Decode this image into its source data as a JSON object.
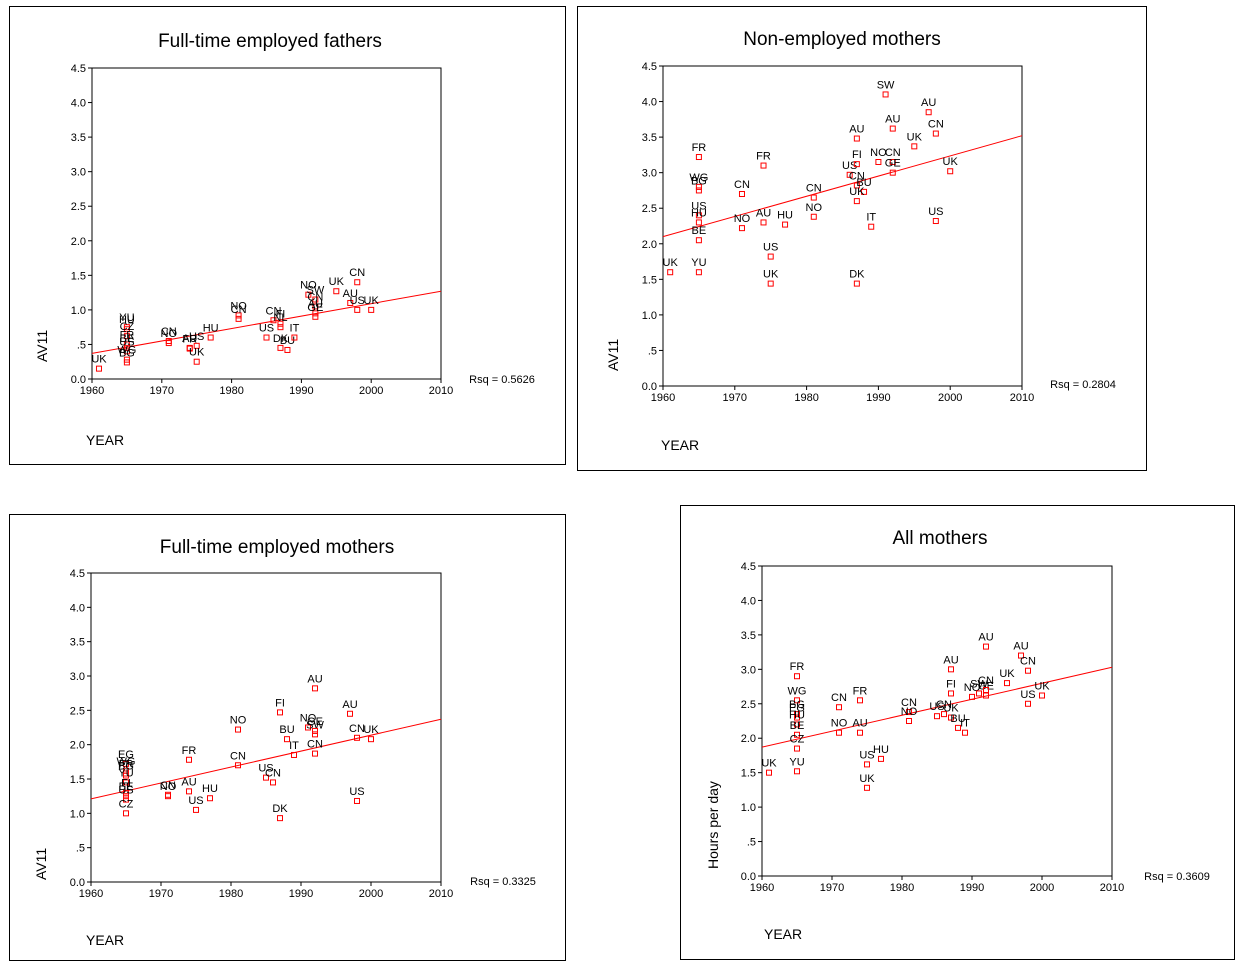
{
  "chart_data": [
    {
      "type": "scatter",
      "title": "Full-time employed fathers",
      "xlabel": "YEAR",
      "ylabel": "AV11",
      "xlim": [
        1960,
        2010
      ],
      "ylim": [
        0,
        4.5
      ],
      "x_ticks": [
        "1960",
        "1970",
        "1980",
        "1990",
        "2000",
        "2010"
      ],
      "y_ticks": [
        "0.0",
        ".5",
        "1.0",
        "1.5",
        "2.0",
        "2.5",
        "3.0",
        "3.5",
        "4.0",
        "4.5"
      ],
      "rsq_label": "Rsq = 0.5626",
      "fit_line": [
        [
          1960,
          0.37
        ],
        [
          2010,
          1.27
        ]
      ],
      "points": [
        {
          "label": "UK",
          "x": 1961,
          "y": 0.15
        },
        {
          "label": "YU",
          "x": 1965,
          "y": 0.75
        },
        {
          "label": "HU",
          "x": 1965,
          "y": 0.72
        },
        {
          "label": "CZ",
          "x": 1965,
          "y": 0.62
        },
        {
          "label": "FR",
          "x": 1965,
          "y": 0.5
        },
        {
          "label": "BE",
          "x": 1965,
          "y": 0.45
        },
        {
          "label": "US",
          "x": 1965,
          "y": 0.4
        },
        {
          "label": "WG",
          "x": 1965,
          "y": 0.28
        },
        {
          "label": "BG",
          "x": 1965,
          "y": 0.24
        },
        {
          "label": "NO",
          "x": 1971,
          "y": 0.52
        },
        {
          "label": "CN",
          "x": 1971,
          "y": 0.55
        },
        {
          "label": "FR",
          "x": 1974,
          "y": 0.44
        },
        {
          "label": "AU",
          "x": 1974,
          "y": 0.45
        },
        {
          "label": "US",
          "x": 1975,
          "y": 0.48
        },
        {
          "label": "UK",
          "x": 1975,
          "y": 0.25
        },
        {
          "label": "HU",
          "x": 1977,
          "y": 0.6
        },
        {
          "label": "NO",
          "x": 1981,
          "y": 0.92
        },
        {
          "label": "CN",
          "x": 1981,
          "y": 0.87
        },
        {
          "label": "US",
          "x": 1985,
          "y": 0.6
        },
        {
          "label": "CN",
          "x": 1986,
          "y": 0.85
        },
        {
          "label": "FI",
          "x": 1987,
          "y": 0.8
        },
        {
          "label": "NL",
          "x": 1987,
          "y": 0.75
        },
        {
          "label": "DK",
          "x": 1987,
          "y": 0.45
        },
        {
          "label": "BU",
          "x": 1988,
          "y": 0.42
        },
        {
          "label": "IT",
          "x": 1989,
          "y": 0.6
        },
        {
          "label": "NO",
          "x": 1991,
          "y": 1.22
        },
        {
          "label": "SW",
          "x": 1992,
          "y": 1.15
        },
        {
          "label": "CN",
          "x": 1992,
          "y": 1.05
        },
        {
          "label": "AU",
          "x": 1992,
          "y": 0.95
        },
        {
          "label": "GE",
          "x": 1992,
          "y": 0.9
        },
        {
          "label": "UK",
          "x": 1995,
          "y": 1.27
        },
        {
          "label": "AU",
          "x": 1997,
          "y": 1.1
        },
        {
          "label": "CN",
          "x": 1998,
          "y": 1.4
        },
        {
          "label": "US",
          "x": 1998,
          "y": 1.0
        },
        {
          "label": "UK",
          "x": 2000,
          "y": 1.0
        }
      ]
    },
    {
      "type": "scatter",
      "title": "Non-employed mothers",
      "xlabel": "YEAR",
      "ylabel": "AV11",
      "xlim": [
        1960,
        2010
      ],
      "ylim": [
        0,
        4.5
      ],
      "x_ticks": [
        "1960",
        "1970",
        "1980",
        "1990",
        "2000",
        "2010"
      ],
      "y_ticks": [
        "0.0",
        ".5",
        "1.0",
        "1.5",
        "2.0",
        "2.5",
        "3.0",
        "3.5",
        "4.0",
        "4.5"
      ],
      "rsq_label": "Rsq = 0.2804",
      "fit_line": [
        [
          1960,
          2.1
        ],
        [
          2010,
          3.52
        ]
      ],
      "points": [
        {
          "label": "UK",
          "x": 1961,
          "y": 1.6
        },
        {
          "label": "YU",
          "x": 1965,
          "y": 1.6
        },
        {
          "label": "FR",
          "x": 1965,
          "y": 3.22
        },
        {
          "label": "WG",
          "x": 1965,
          "y": 2.8
        },
        {
          "label": "BG",
          "x": 1965,
          "y": 2.75
        },
        {
          "label": "US",
          "x": 1965,
          "y": 2.4
        },
        {
          "label": "HU",
          "x": 1965,
          "y": 2.3
        },
        {
          "label": "BE",
          "x": 1965,
          "y": 2.05
        },
        {
          "label": "CN",
          "x": 1971,
          "y": 2.7
        },
        {
          "label": "NO",
          "x": 1971,
          "y": 2.22
        },
        {
          "label": "FR",
          "x": 1974,
          "y": 3.1
        },
        {
          "label": "AU",
          "x": 1974,
          "y": 2.3
        },
        {
          "label": "US",
          "x": 1975,
          "y": 1.82
        },
        {
          "label": "UK",
          "x": 1975,
          "y": 1.44
        },
        {
          "label": "HU",
          "x": 1977,
          "y": 2.27
        },
        {
          "label": "CN",
          "x": 1981,
          "y": 2.65
        },
        {
          "label": "NO",
          "x": 1981,
          "y": 2.38
        },
        {
          "label": "US",
          "x": 1986,
          "y": 2.97
        },
        {
          "label": "CN",
          "x": 1987,
          "y": 2.82
        },
        {
          "label": "AU",
          "x": 1987,
          "y": 3.48
        },
        {
          "label": "FI",
          "x": 1987,
          "y": 3.12
        },
        {
          "label": "BU",
          "x": 1988,
          "y": 2.73
        },
        {
          "label": "UK",
          "x": 1987,
          "y": 2.6
        },
        {
          "label": "DK",
          "x": 1987,
          "y": 1.44
        },
        {
          "label": "IT",
          "x": 1989,
          "y": 2.24
        },
        {
          "label": "NO",
          "x": 1990,
          "y": 3.15
        },
        {
          "label": "SW",
          "x": 1991,
          "y": 4.1
        },
        {
          "label": "AU",
          "x": 1992,
          "y": 3.62
        },
        {
          "label": "CN",
          "x": 1992,
          "y": 3.15
        },
        {
          "label": "GE",
          "x": 1992,
          "y": 3.0
        },
        {
          "label": "UK",
          "x": 1995,
          "y": 3.37
        },
        {
          "label": "AU",
          "x": 1997,
          "y": 3.85
        },
        {
          "label": "CN",
          "x": 1998,
          "y": 3.55
        },
        {
          "label": "UK",
          "x": 2000,
          "y": 3.02
        },
        {
          "label": "US",
          "x": 1998,
          "y": 2.32
        }
      ]
    },
    {
      "type": "scatter",
      "title": "Full-time employed mothers",
      "xlabel": "YEAR",
      "ylabel": "AV11",
      "xlim": [
        1960,
        2010
      ],
      "ylim": [
        0,
        4.5
      ],
      "x_ticks": [
        "1960",
        "1970",
        "1980",
        "1990",
        "2000",
        "2010"
      ],
      "y_ticks": [
        "0.0",
        ".5",
        "1.0",
        "1.5",
        "2.0",
        "2.5",
        "3.0",
        "3.5",
        "4.0",
        "4.5"
      ],
      "rsq_label": "Rsq = 0.3325",
      "fit_line": [
        [
          1960,
          1.21
        ],
        [
          2010,
          2.37
        ]
      ],
      "points": [
        {
          "label": "EG",
          "x": 1965,
          "y": 1.72
        },
        {
          "label": "WG",
          "x": 1965,
          "y": 1.62
        },
        {
          "label": "FR",
          "x": 1965,
          "y": 1.58
        },
        {
          "label": "BG",
          "x": 1965,
          "y": 1.55
        },
        {
          "label": "YU",
          "x": 1965,
          "y": 1.45
        },
        {
          "label": "FI",
          "x": 1965,
          "y": 1.3
        },
        {
          "label": "BE",
          "x": 1965,
          "y": 1.25
        },
        {
          "label": "US",
          "x": 1965,
          "y": 1.2
        },
        {
          "label": "CZ",
          "x": 1965,
          "y": 1.0
        },
        {
          "label": "NO",
          "x": 1971,
          "y": 1.25
        },
        {
          "label": "CN",
          "x": 1971,
          "y": 1.27
        },
        {
          "label": "FR",
          "x": 1974,
          "y": 1.78
        },
        {
          "label": "AU",
          "x": 1974,
          "y": 1.32
        },
        {
          "label": "US",
          "x": 1975,
          "y": 1.05
        },
        {
          "label": "HU",
          "x": 1977,
          "y": 1.22
        },
        {
          "label": "NO",
          "x": 1981,
          "y": 2.22
        },
        {
          "label": "CN",
          "x": 1981,
          "y": 1.7
        },
        {
          "label": "US",
          "x": 1985,
          "y": 1.52
        },
        {
          "label": "CN",
          "x": 1986,
          "y": 1.45
        },
        {
          "label": "FI",
          "x": 1987,
          "y": 2.47
        },
        {
          "label": "BU",
          "x": 1988,
          "y": 2.08
        },
        {
          "label": "IT",
          "x": 1989,
          "y": 1.85
        },
        {
          "label": "DK",
          "x": 1987,
          "y": 0.93
        },
        {
          "label": "NO",
          "x": 1991,
          "y": 2.25
        },
        {
          "label": "SW",
          "x": 1992,
          "y": 2.15
        },
        {
          "label": "GE",
          "x": 1992,
          "y": 2.2
        },
        {
          "label": "CN",
          "x": 1992,
          "y": 1.87
        },
        {
          "label": "AU",
          "x": 1992,
          "y": 2.82
        },
        {
          "label": "AU",
          "x": 1997,
          "y": 2.45
        },
        {
          "label": "CN",
          "x": 1998,
          "y": 2.1
        },
        {
          "label": "UK",
          "x": 2000,
          "y": 2.08
        },
        {
          "label": "US",
          "x": 1998,
          "y": 1.18
        }
      ]
    },
    {
      "type": "scatter",
      "title": "All mothers",
      "xlabel": "YEAR",
      "ylabel": "Hours per day",
      "xlim": [
        1960,
        2010
      ],
      "ylim": [
        0,
        4.5
      ],
      "x_ticks": [
        "1960",
        "1970",
        "1980",
        "1990",
        "2000",
        "2010"
      ],
      "y_ticks": [
        "0.0",
        ".5",
        "1.0",
        "1.5",
        "2.0",
        "2.5",
        "3.0",
        "3.5",
        "4.0",
        "4.5"
      ],
      "rsq_label": "Rsq = 0.3609",
      "fit_line": [
        [
          1960,
          1.87
        ],
        [
          2010,
          3.03
        ]
      ],
      "points": [
        {
          "label": "UK",
          "x": 1961,
          "y": 1.5
        },
        {
          "label": "YU",
          "x": 1965,
          "y": 1.52
        },
        {
          "label": "FR",
          "x": 1965,
          "y": 2.9
        },
        {
          "label": "WG",
          "x": 1965,
          "y": 2.55
        },
        {
          "label": "BG",
          "x": 1965,
          "y": 2.35
        },
        {
          "label": "EG",
          "x": 1965,
          "y": 2.3
        },
        {
          "label": "HU",
          "x": 1965,
          "y": 2.2
        },
        {
          "label": "BE",
          "x": 1965,
          "y": 2.05
        },
        {
          "label": "CZ",
          "x": 1965,
          "y": 1.85
        },
        {
          "label": "CN",
          "x": 1971,
          "y": 2.45
        },
        {
          "label": "NO",
          "x": 1971,
          "y": 2.08
        },
        {
          "label": "FR",
          "x": 1974,
          "y": 2.55
        },
        {
          "label": "AU",
          "x": 1974,
          "y": 2.08
        },
        {
          "label": "US",
          "x": 1975,
          "y": 1.62
        },
        {
          "label": "UK",
          "x": 1975,
          "y": 1.28
        },
        {
          "label": "HU",
          "x": 1977,
          "y": 1.7
        },
        {
          "label": "CN",
          "x": 1981,
          "y": 2.38
        },
        {
          "label": "NO",
          "x": 1981,
          "y": 2.25
        },
        {
          "label": "US",
          "x": 1985,
          "y": 2.32
        },
        {
          "label": "CN",
          "x": 1986,
          "y": 2.35
        },
        {
          "label": "AU",
          "x": 1987,
          "y": 3.0
        },
        {
          "label": "FI",
          "x": 1987,
          "y": 2.65
        },
        {
          "label": "UK",
          "x": 1987,
          "y": 2.3
        },
        {
          "label": "BU",
          "x": 1988,
          "y": 2.15
        },
        {
          "label": "IT",
          "x": 1989,
          "y": 2.08
        },
        {
          "label": "NO",
          "x": 1990,
          "y": 2.6
        },
        {
          "label": "SW",
          "x": 1991,
          "y": 2.65
        },
        {
          "label": "GE",
          "x": 1992,
          "y": 2.62
        },
        {
          "label": "CN",
          "x": 1992,
          "y": 2.7
        },
        {
          "label": "AU",
          "x": 1992,
          "y": 3.33
        },
        {
          "label": "UK",
          "x": 1995,
          "y": 2.8
        },
        {
          "label": "AU",
          "x": 1997,
          "y": 3.2
        },
        {
          "label": "CN",
          "x": 1998,
          "y": 2.98
        },
        {
          "label": "UK",
          "x": 2000,
          "y": 2.62
        },
        {
          "label": "US",
          "x": 1998,
          "y": 2.5
        }
      ]
    }
  ],
  "colors": {
    "marker": "#ff0000",
    "fit_line": "#ff0000",
    "axis": "#000000",
    "text": "#000000"
  }
}
